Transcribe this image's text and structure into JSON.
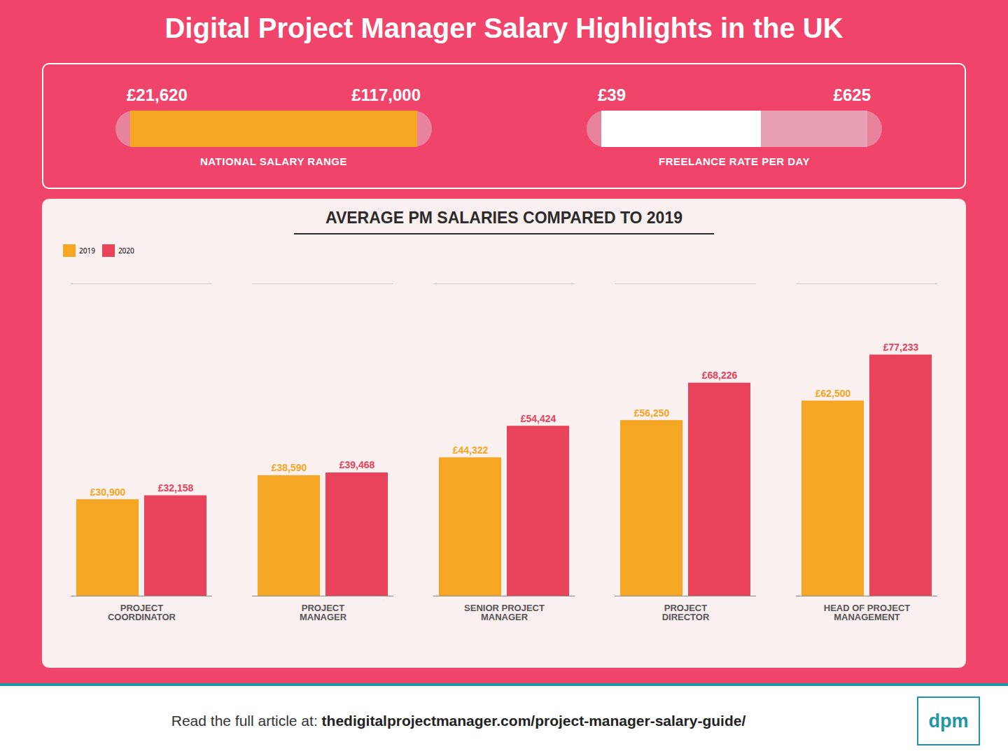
{
  "chart_data": {
    "type": "bar",
    "title": "Digital Project Manager Salary Highlights in the UK",
    "subtitle": "AVERAGE PM SALARIES COMPARED TO 2019",
    "annotations": [
      "£21,620",
      "£117,000",
      "NATIONAL SALARY RANGE",
      "£39",
      "£625",
      "FREELANCE RATE PER DAY",
      "Read the full article at:",
      "thedigitalprojectmanager.com/project-manager-salary-guide/",
      "dpm"
    ],
    "categories": [
      "PROJECT\nCOORDINATOR",
      "PROJECT\nMANAGER",
      "SENIOR PROJECT\nMANAGER",
      "PROJECT\nDIRECTOR",
      "HEAD OF PROJECT\nMANAGEMENT"
    ],
    "series": [
      {
        "name": "2019",
        "color": "#F5A623",
        "values": [
          30900,
          38590,
          44322,
          56250,
          62500
        ],
        "value_labels": [
          "£30,900",
          "£38,590",
          "£44,322",
          "£56,250",
          "£62,500"
        ]
      },
      {
        "name": "2020",
        "color": "#E8435A",
        "values": [
          32158,
          39468,
          54424,
          68226,
          77233
        ],
        "value_labels": [
          "£32,158",
          "£39,468",
          "£54,424",
          "£68,226",
          "£77,233"
        ]
      }
    ],
    "ylim": [
      0,
      100000
    ],
    "tick_labels": "x",
    "grid": false,
    "legend": "top-left",
    "data_labels": true
  }
}
